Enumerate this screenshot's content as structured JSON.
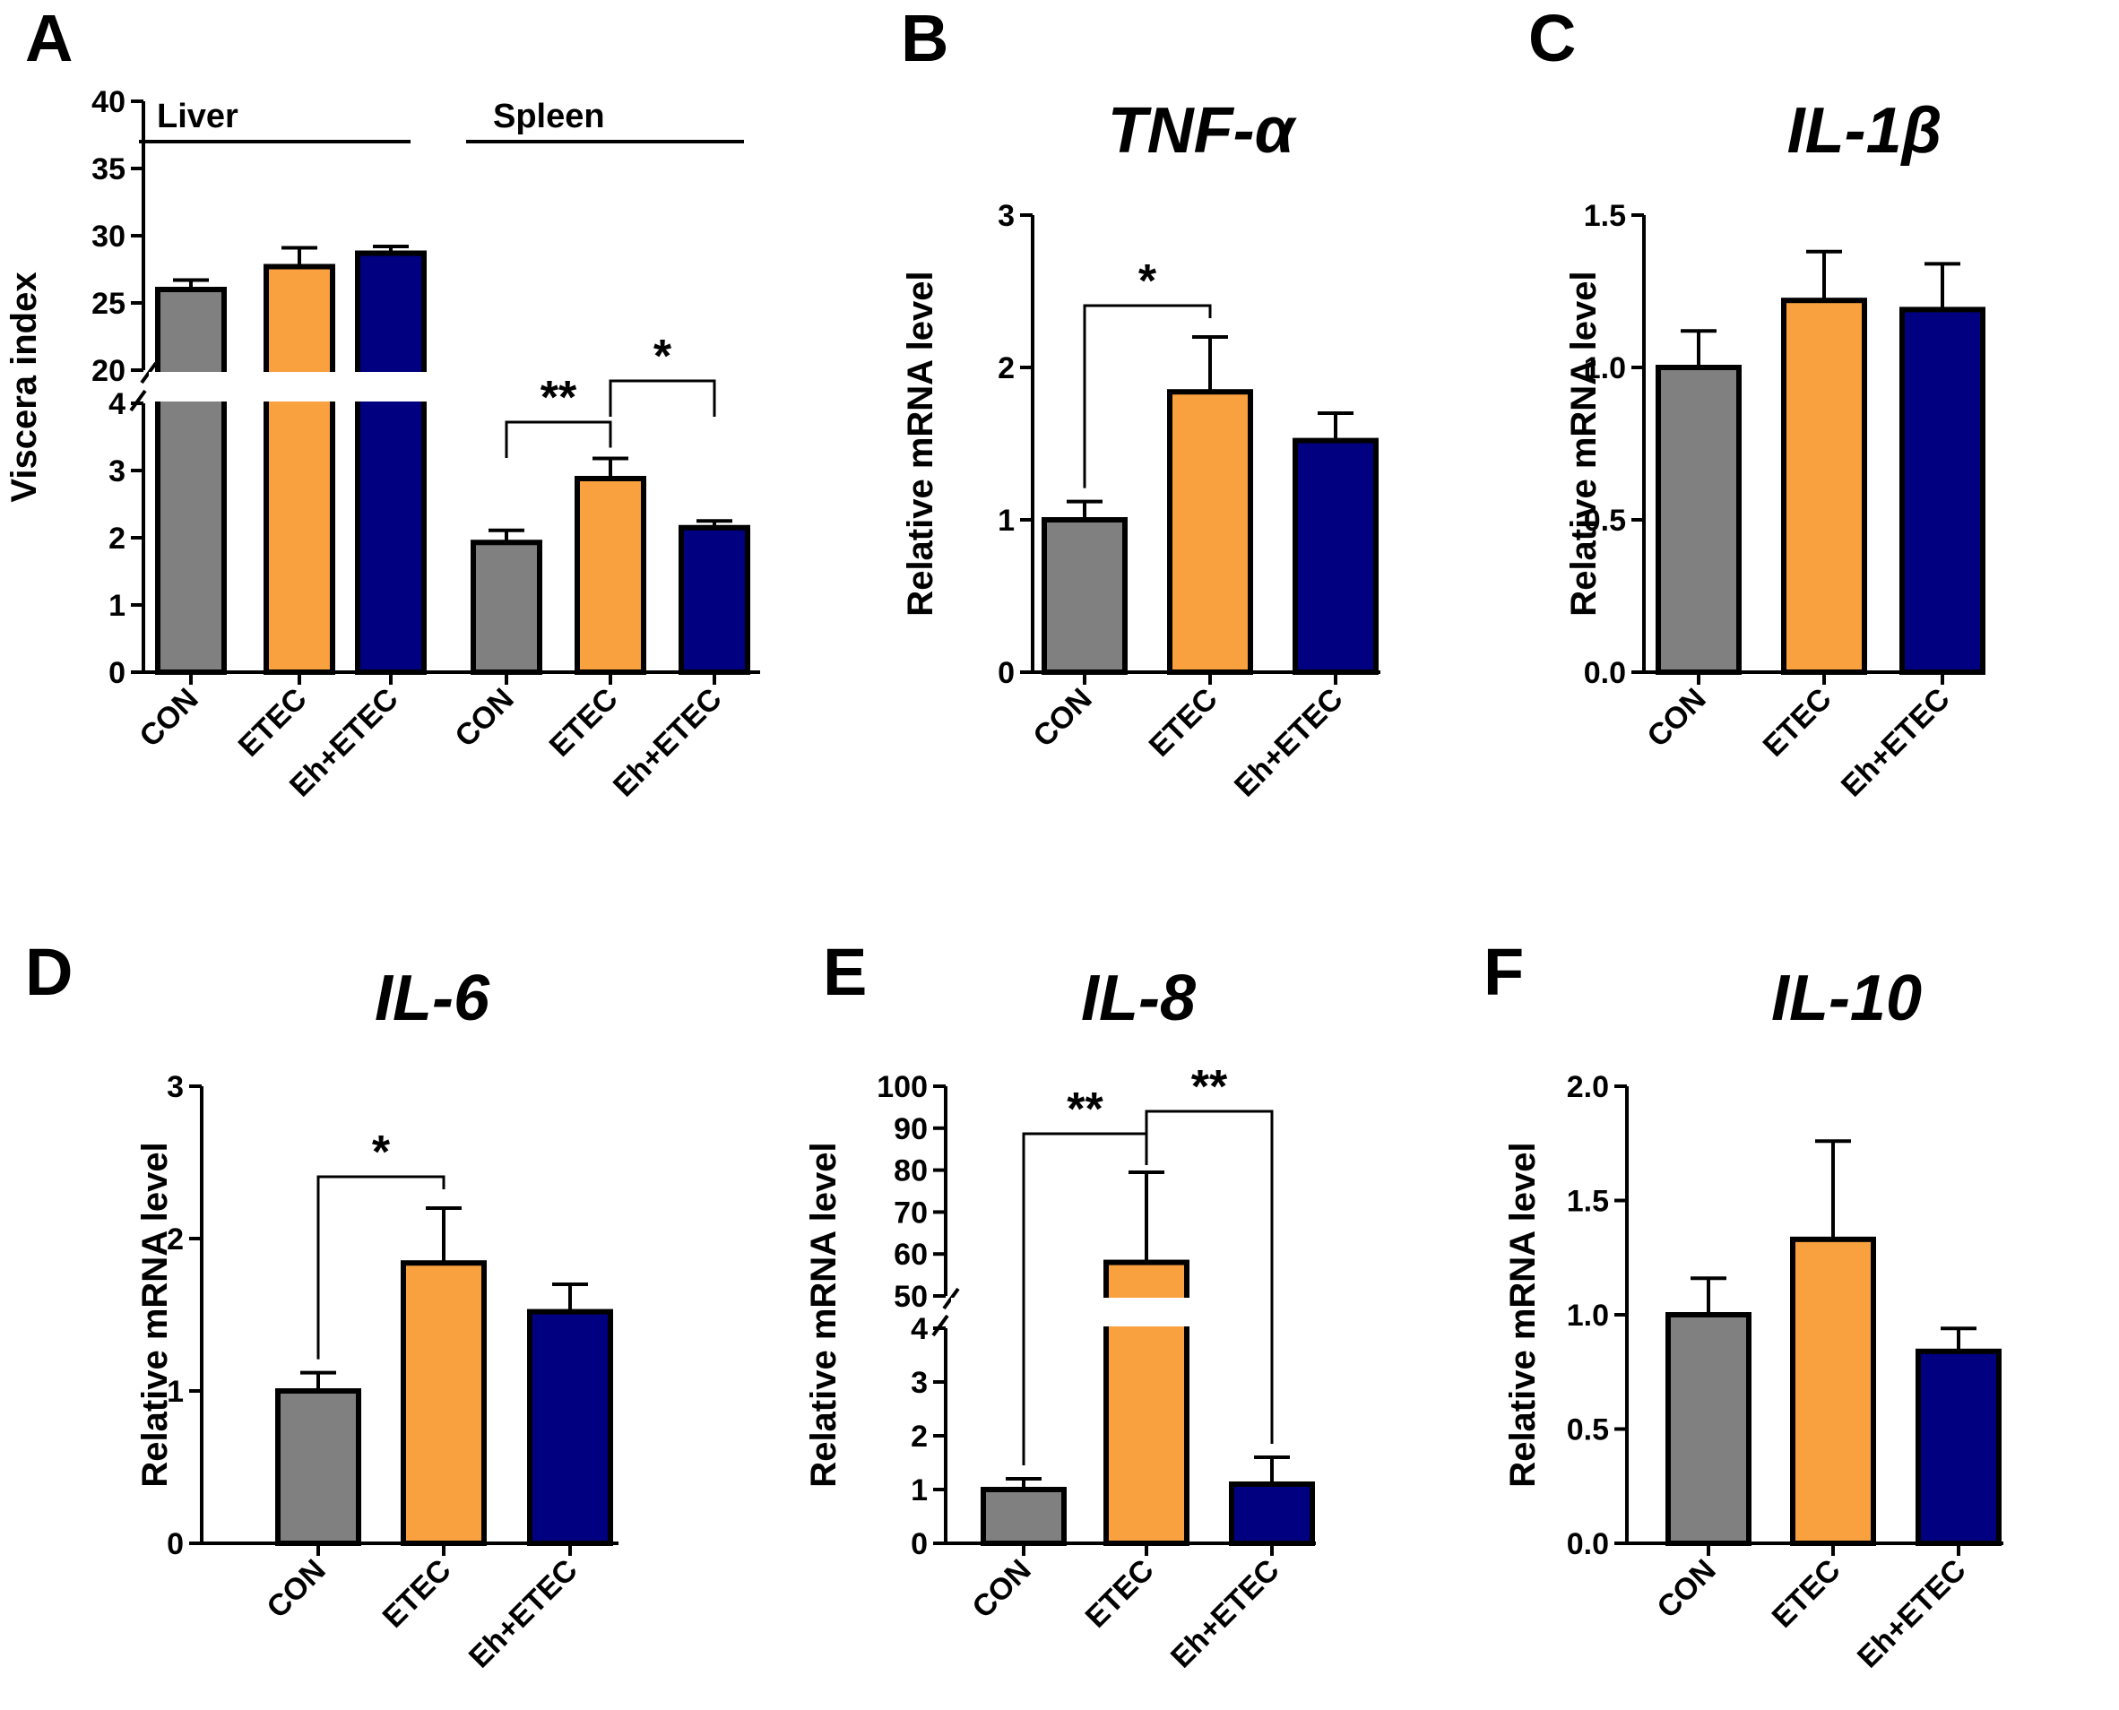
{
  "colors": {
    "CON": "#808080",
    "ETEC": "#F9A03F",
    "Eh+ETEC": "#000080"
  },
  "chart_data": [
    {
      "panel": "A",
      "type": "bar",
      "title": "",
      "ylabel": "Viscera index",
      "ylim": [
        0,
        40
      ],
      "axis_break": {
        "lower": [
          0,
          4
        ],
        "upper": [
          20,
          40
        ]
      },
      "yticks": [
        "0",
        "1",
        "2",
        "3",
        "4",
        "20",
        "25",
        "30",
        "35",
        "40"
      ],
      "groups": [
        {
          "label": "Liver",
          "categories": [
            "CON",
            "ETEC",
            "Eh+ETEC"
          ],
          "values": [
            26.0,
            27.7,
            28.7
          ],
          "errors": [
            0.7,
            1.4,
            0.5
          ]
        },
        {
          "label": "Spleen",
          "categories": [
            "CON",
            "ETEC",
            "Eh+ETEC"
          ],
          "values": [
            1.93,
            2.88,
            2.15
          ],
          "errors": [
            0.18,
            0.3,
            0.1
          ]
        }
      ],
      "significance": [
        {
          "group": 1,
          "from": 0,
          "to": 1,
          "label": "**"
        },
        {
          "group": 1,
          "from": 1,
          "to": 2,
          "label": "*"
        }
      ]
    },
    {
      "panel": "B",
      "type": "bar",
      "title": "TNF-α",
      "ylabel": "Relative mRNA level",
      "ylim": [
        0,
        3
      ],
      "yticks": [
        "0",
        "1",
        "2",
        "3"
      ],
      "categories": [
        "CON",
        "ETEC",
        "Eh+ETEC"
      ],
      "values": [
        1.0,
        1.84,
        1.52
      ],
      "errors": [
        0.12,
        0.36,
        0.18
      ],
      "significance": [
        {
          "from": 0,
          "to": 1,
          "label": "*"
        }
      ]
    },
    {
      "panel": "C",
      "type": "bar",
      "title": "IL-1β",
      "ylabel": "Relative mRNA level",
      "ylim": [
        0,
        1.5
      ],
      "yticks": [
        "0.0",
        "0.5",
        "1.0",
        "1.5"
      ],
      "categories": [
        "CON",
        "ETEC",
        "Eh+ETEC"
      ],
      "values": [
        1.0,
        1.22,
        1.19
      ],
      "errors": [
        0.12,
        0.16,
        0.15
      ],
      "significance": []
    },
    {
      "panel": "D",
      "type": "bar",
      "title": "IL-6",
      "ylabel": "Relative mRNA level",
      "ylim": [
        0,
        3
      ],
      "yticks": [
        "0",
        "1",
        "2",
        "3"
      ],
      "categories": [
        "CON",
        "ETEC",
        "Eh+ETEC"
      ],
      "values": [
        1.0,
        1.84,
        1.52
      ],
      "errors": [
        0.12,
        0.36,
        0.18
      ],
      "significance": [
        {
          "from": 0,
          "to": 1,
          "label": "*"
        }
      ]
    },
    {
      "panel": "E",
      "type": "bar",
      "title": "IL-8",
      "ylabel": "Relative mRNA level",
      "ylim": [
        0,
        100
      ],
      "axis_break": {
        "lower": [
          0,
          4
        ],
        "upper": [
          50,
          100
        ]
      },
      "yticks": [
        "0",
        "1",
        "2",
        "3",
        "4",
        "50",
        "60",
        "70",
        "80",
        "90",
        "100"
      ],
      "categories": [
        "CON",
        "ETEC",
        "Eh+ETEC"
      ],
      "values": [
        1.0,
        58.0,
        1.1
      ],
      "errors": [
        0.2,
        21.5,
        0.5
      ],
      "significance": [
        {
          "from": 0,
          "to": 1,
          "label": "**"
        },
        {
          "from": 1,
          "to": 2,
          "label": "**"
        }
      ]
    },
    {
      "panel": "F",
      "type": "bar",
      "title": "IL-10",
      "ylabel": "Relative mRNA level",
      "ylim": [
        0,
        2.0
      ],
      "yticks": [
        "0.0",
        "0.5",
        "1.0",
        "1.5",
        "2.0"
      ],
      "categories": [
        "CON",
        "ETEC",
        "Eh+ETEC"
      ],
      "values": [
        1.0,
        1.33,
        0.84
      ],
      "errors": [
        0.16,
        0.43,
        0.1
      ],
      "significance": []
    }
  ]
}
